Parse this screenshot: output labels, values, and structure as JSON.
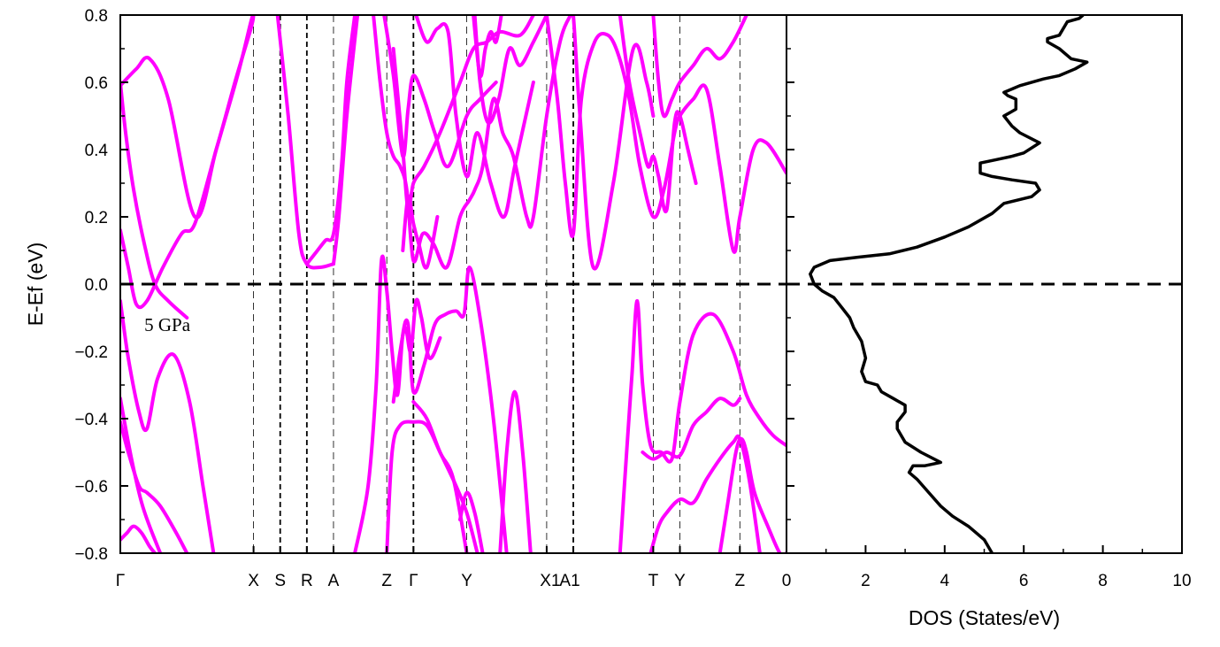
{
  "chart_data": [
    {
      "type": "line",
      "panel": "band-structure",
      "ylabel": "E-Ef (eV)",
      "ylim": [
        -0.8,
        0.8
      ],
      "y_ticks": [
        "-0.8",
        "-0.6",
        "-0.4",
        "-0.2",
        "0.0",
        "0.2",
        "0.4",
        "0.6",
        "0.8"
      ],
      "kpoint_labels": [
        "Γ",
        "X",
        "S",
        "R",
        "A",
        "Z",
        "Γ",
        "Y",
        "X1",
        "A1",
        "T",
        "Y",
        "Z"
      ],
      "kpoint_positions": [
        0,
        1,
        1.2,
        1.4,
        1.6,
        2.0,
        2.2,
        2.6,
        3.2,
        3.4,
        4.0,
        4.2,
        4.65
      ],
      "xlim": [
        0,
        5.0
      ],
      "annotation": "5 GPa",
      "fermi_level": 0.0,
      "band_color": "#ff00ff",
      "series": [
        {
          "x": [
            0,
            0.12,
            0.22,
            0.36,
            0.56,
            0.72,
            0.86,
            0.98,
            1.0
          ],
          "y": [
            0.59,
            0.64,
            0.67,
            0.55,
            0.2,
            0.4,
            0.6,
            0.76,
            0.8
          ]
        },
        {
          "x": [
            0,
            0.06,
            0.12,
            0.2,
            0.32,
            0.46,
            0.56,
            0.72,
            0.88,
            0.98,
            1.0
          ],
          "y": [
            0.16,
            0.05,
            -0.06,
            -0.05,
            0.05,
            0.15,
            0.18,
            0.4,
            0.62,
            0.78,
            0.8
          ]
        },
        {
          "x": [
            0,
            0.04,
            0.1,
            0.18,
            0.26,
            0.36,
            0.5
          ],
          "y": [
            0.6,
            0.45,
            0.28,
            0.12,
            0.0,
            -0.05,
            -0.1
          ]
        },
        {
          "x": [
            0,
            0.06,
            0.14,
            0.2,
            0.28,
            0.4,
            0.52,
            0.62,
            0.7
          ],
          "y": [
            -0.05,
            -0.22,
            -0.38,
            -0.43,
            -0.28,
            -0.21,
            -0.35,
            -0.6,
            -0.8
          ]
        },
        {
          "x": [
            0,
            0.05,
            0.1,
            0.16,
            0.22,
            0.3
          ],
          "y": [
            -0.34,
            -0.45,
            -0.55,
            -0.65,
            -0.72,
            -0.8
          ]
        },
        {
          "x": [
            0,
            0.06,
            0.14,
            0.2,
            0.3,
            0.42,
            0.5
          ],
          "y": [
            -0.41,
            -0.5,
            -0.6,
            -0.62,
            -0.66,
            -0.74,
            -0.8
          ]
        },
        {
          "x": [
            0,
            0.05,
            0.1,
            0.16,
            0.22,
            0.26
          ],
          "y": [
            -0.76,
            -0.74,
            -0.72,
            -0.74,
            -0.78,
            -0.8
          ]
        },
        {
          "x": [
            1.18,
            1.26,
            1.34,
            1.4,
            1.5,
            1.6
          ],
          "y": [
            0.8,
            0.5,
            0.15,
            0.06,
            0.05,
            0.06
          ]
        },
        {
          "x": [
            1.4,
            1.46,
            1.54,
            1.6,
            1.66,
            1.7,
            1.76
          ],
          "y": [
            0.06,
            0.09,
            0.13,
            0.15,
            0.35,
            0.6,
            0.8
          ]
        },
        {
          "x": [
            1.6,
            1.64,
            1.7,
            1.78
          ],
          "y": [
            0.06,
            0.2,
            0.5,
            0.8
          ]
        },
        {
          "x": [
            1.9,
            1.95,
            2.0,
            2.05,
            2.1,
            2.15,
            2.2,
            2.27,
            2.35,
            2.45,
            2.55,
            2.62,
            2.66,
            2.72,
            2.8,
            2.87,
            2.95,
            3.05,
            3.1,
            3.2,
            3.3,
            3.38,
            3.4,
            3.45,
            3.55,
            3.7,
            3.85,
            3.95,
            4.0
          ],
          "y": [
            0.8,
            0.6,
            0.45,
            0.38,
            0.35,
            0.28,
            0.07,
            0.15,
            0.12,
            0.05,
            0.2,
            0.25,
            0.28,
            0.35,
            0.55,
            0.45,
            0.38,
            0.2,
            0.2,
            0.5,
            0.72,
            0.8,
            0.8,
            0.5,
            0.05,
            0.3,
            0.7,
            0.6,
            0.5
          ]
        },
        {
          "x": [
            1.98,
            2.05,
            2.12,
            2.16,
            2.2,
            2.28,
            2.36,
            2.46,
            2.6,
            2.7,
            2.82
          ],
          "y": [
            0.8,
            0.62,
            0.38,
            0.52,
            0.62,
            0.55,
            0.45,
            0.35,
            0.5,
            0.55,
            0.6
          ]
        },
        {
          "x": [
            2.05,
            2.12,
            2.16,
            2.2,
            2.28,
            2.4,
            2.55,
            2.65,
            2.75,
            2.85,
            3.0,
            3.1
          ],
          "y": [
            0.7,
            0.4,
            0.22,
            0.3,
            0.35,
            0.45,
            0.6,
            0.7,
            0.72,
            0.75,
            0.74,
            0.8
          ]
        },
        {
          "x": [
            2.12,
            2.16,
            2.2,
            2.24,
            2.3,
            2.38
          ],
          "y": [
            0.1,
            0.26,
            0.18,
            0.12,
            0.05,
            0.2
          ]
        },
        {
          "x": [
            2.22,
            2.3,
            2.38,
            2.46,
            2.52,
            2.6,
            2.68,
            2.78,
            2.88,
            2.96,
            3.1
          ],
          "y": [
            0.8,
            0.72,
            0.76,
            0.75,
            0.5,
            0.32,
            0.45,
            0.3,
            0.2,
            0.35,
            0.6
          ]
        },
        {
          "x": [
            2.66,
            2.7,
            2.76,
            2.84,
            2.92,
            3.0,
            3.1,
            3.2
          ],
          "y": [
            0.8,
            0.6,
            0.48,
            0.55,
            0.7,
            0.65,
            0.72,
            0.8
          ]
        },
        {
          "x": [
            3.2,
            3.28,
            3.34,
            3.4,
            3.46,
            3.56,
            3.66,
            3.74,
            3.82,
            3.9,
            4.0,
            4.08,
            4.16,
            4.2,
            4.3,
            4.4,
            4.5,
            4.6,
            4.65,
            4.75,
            4.85,
            5.0
          ],
          "y": [
            0.8,
            0.55,
            0.3,
            0.15,
            0.55,
            0.72,
            0.74,
            0.68,
            0.55,
            0.35,
            0.2,
            0.28,
            0.45,
            0.5,
            0.55,
            0.58,
            0.35,
            0.1,
            0.2,
            0.4,
            0.42,
            0.33
          ]
        },
        {
          "x": [
            4.0,
            4.04,
            4.08,
            4.14,
            4.2,
            4.3,
            4.4,
            4.5,
            4.6,
            4.7
          ],
          "y": [
            0.8,
            0.6,
            0.5,
            0.55,
            0.6,
            0.65,
            0.7,
            0.67,
            0.72,
            0.8
          ]
        },
        {
          "x": [
            3.75,
            3.82,
            3.9,
            3.96,
            4.0,
            4.04,
            4.1,
            4.16,
            4.2,
            4.26,
            4.32
          ],
          "y": [
            0.8,
            0.6,
            0.45,
            0.35,
            0.38,
            0.32,
            0.22,
            0.48,
            0.5,
            0.4,
            0.3
          ]
        },
        {
          "x": [
            2.65,
            2.7,
            2.74,
            2.78,
            2.82,
            2.86
          ],
          "y": [
            0.8,
            0.62,
            0.7,
            0.75,
            0.72,
            0.8
          ]
        },
        {
          "x": [
            1.76,
            1.86,
            1.92,
            1.96,
            2.0,
            2.04,
            2.08,
            2.12,
            2.16,
            2.2,
            2.28,
            2.36,
            2.44,
            2.52,
            2.58,
            2.62,
            2.7,
            2.8,
            2.9
          ],
          "y": [
            -0.8,
            -0.6,
            -0.3,
            0.07,
            -0.02,
            -0.2,
            -0.33,
            -0.15,
            -0.12,
            -0.32,
            -0.24,
            -0.12,
            -0.09,
            -0.08,
            -0.09,
            0.05,
            -0.1,
            -0.4,
            -0.8
          ]
        },
        {
          "x": [
            2.05,
            2.1,
            2.14,
            2.18,
            2.22,
            2.26,
            2.32,
            2.4
          ],
          "y": [
            -0.35,
            -0.2,
            -0.13,
            -0.2,
            -0.05,
            -0.1,
            -0.22,
            -0.16
          ]
        },
        {
          "x": [
            2.0,
            2.04,
            2.1,
            2.2,
            2.3,
            2.4,
            2.52,
            2.6,
            2.68
          ],
          "y": [
            -0.8,
            -0.5,
            -0.42,
            -0.41,
            -0.42,
            -0.5,
            -0.6,
            -0.68,
            -0.8
          ]
        },
        {
          "x": [
            2.2,
            2.3,
            2.4,
            2.5,
            2.6
          ],
          "y": [
            -0.35,
            -0.4,
            -0.5,
            -0.58,
            -0.8
          ]
        },
        {
          "x": [
            2.85,
            2.9,
            2.96,
            3.02,
            3.08
          ],
          "y": [
            -0.8,
            -0.5,
            -0.32,
            -0.5,
            -0.8
          ]
        },
        {
          "x": [
            2.55,
            2.6,
            2.66,
            2.72
          ],
          "y": [
            -0.7,
            -0.62,
            -0.68,
            -0.8
          ]
        },
        {
          "x": [
            3.75,
            3.8,
            3.84,
            3.88,
            3.92,
            3.98,
            4.06,
            4.14,
            4.2,
            4.3,
            4.45,
            4.6,
            4.7,
            4.8,
            4.9,
            5.0
          ],
          "y": [
            -0.8,
            -0.5,
            -0.27,
            -0.05,
            -0.3,
            -0.48,
            -0.5,
            -0.52,
            -0.35,
            -0.15,
            -0.09,
            -0.2,
            -0.33,
            -0.4,
            -0.45,
            -0.48
          ]
        },
        {
          "x": [
            3.92,
            4.0,
            4.1,
            4.2,
            4.3,
            4.4,
            4.5,
            4.6,
            4.65
          ],
          "y": [
            -0.5,
            -0.52,
            -0.5,
            -0.51,
            -0.42,
            -0.38,
            -0.34,
            -0.36,
            -0.34
          ]
        },
        {
          "x": [
            3.98,
            4.04,
            4.1,
            4.2,
            4.3,
            4.4,
            4.5,
            4.6,
            4.65,
            4.72,
            4.8
          ],
          "y": [
            -0.8,
            -0.72,
            -0.68,
            -0.64,
            -0.65,
            -0.58,
            -0.52,
            -0.47,
            -0.46,
            -0.58,
            -0.8
          ]
        },
        {
          "x": [
            4.5,
            4.56,
            4.62,
            4.66,
            4.7,
            4.76,
            4.86,
            4.95,
            5.0
          ],
          "y": [
            -0.8,
            -0.65,
            -0.5,
            -0.46,
            -0.5,
            -0.62,
            -0.72,
            -0.8,
            -0.8
          ]
        }
      ]
    },
    {
      "type": "line",
      "panel": "dos",
      "xlabel": "DOS (States/eV)",
      "xlim": [
        0,
        10
      ],
      "ylim": [
        -0.8,
        0.8
      ],
      "x_ticks": [
        "0",
        "2",
        "4",
        "6",
        "8",
        "10"
      ],
      "fermi_level": 0.0,
      "line_color": "#000000",
      "series": [
        {
          "x": [
            5.2,
            5.0,
            4.8,
            4.6,
            4.2,
            3.9,
            3.6,
            3.3,
            3.1,
            3.2,
            3.5,
            3.9,
            3.4,
            3.0,
            2.8,
            2.8,
            3.0,
            3.0,
            2.7,
            2.4,
            2.3,
            2.0,
            1.9,
            2.0,
            1.9,
            1.7,
            1.6,
            1.4,
            1.2,
            0.9,
            0.7,
            0.6,
            0.7,
            1.1,
            1.8,
            2.6,
            3.3,
            4.0,
            4.6,
            5.2,
            5.5,
            6.2,
            6.4,
            6.3,
            5.7,
            5.2,
            4.9,
            4.9,
            5.3,
            5.7,
            6.0,
            6.4,
            5.9,
            5.7,
            5.5,
            5.8,
            5.8,
            5.6,
            5.5,
            5.9,
            6.5,
            6.9,
            7.3,
            7.6,
            7.2,
            6.9,
            6.6,
            6.6,
            6.9,
            7.0,
            7.1,
            7.4,
            7.5
          ],
          "y": [
            -0.8,
            -0.76,
            -0.74,
            -0.72,
            -0.69,
            -0.66,
            -0.62,
            -0.58,
            -0.56,
            -0.54,
            -0.54,
            -0.53,
            -0.5,
            -0.47,
            -0.43,
            -0.41,
            -0.38,
            -0.36,
            -0.34,
            -0.32,
            -0.3,
            -0.29,
            -0.26,
            -0.22,
            -0.17,
            -0.13,
            -0.1,
            -0.07,
            -0.04,
            -0.02,
            0.0,
            0.03,
            0.05,
            0.07,
            0.08,
            0.09,
            0.11,
            0.14,
            0.17,
            0.21,
            0.24,
            0.26,
            0.28,
            0.3,
            0.31,
            0.32,
            0.33,
            0.36,
            0.37,
            0.38,
            0.39,
            0.42,
            0.45,
            0.47,
            0.5,
            0.52,
            0.55,
            0.56,
            0.57,
            0.59,
            0.61,
            0.62,
            0.64,
            0.66,
            0.67,
            0.7,
            0.72,
            0.73,
            0.74,
            0.76,
            0.78,
            0.79,
            0.8
          ]
        }
      ]
    }
  ]
}
